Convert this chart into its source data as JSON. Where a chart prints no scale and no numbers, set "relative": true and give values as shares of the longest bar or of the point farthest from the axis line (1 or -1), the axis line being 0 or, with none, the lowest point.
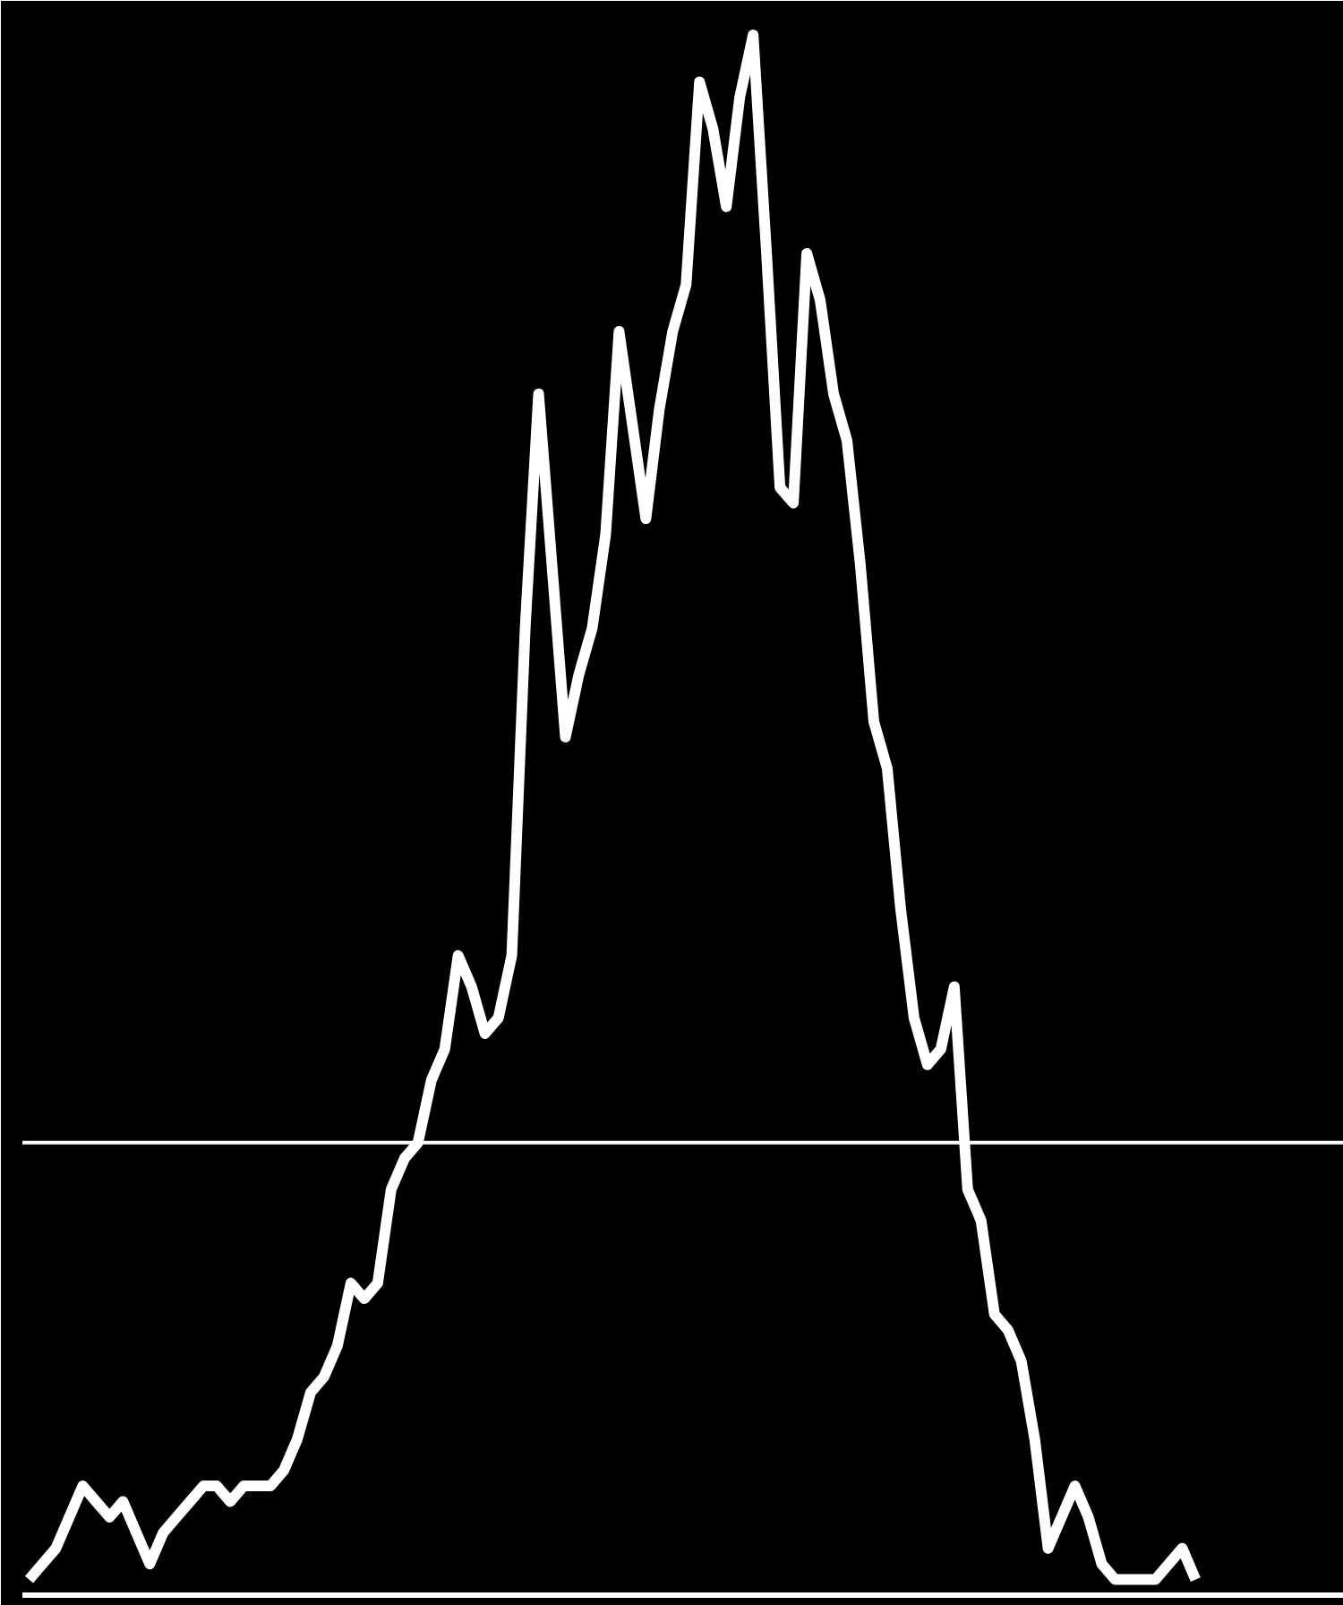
{
  "chart_data": {
    "type": "line",
    "relative": true,
    "grid": false,
    "categories": [
      null,
      null,
      null,
      null,
      null,
      null,
      null,
      null,
      null,
      null,
      null,
      null,
      null,
      null,
      null,
      null,
      null,
      null,
      null,
      null,
      null,
      null,
      null,
      null,
      null,
      null,
      null,
      null,
      null,
      null,
      null,
      null,
      null,
      null,
      null,
      null,
      null,
      null,
      null,
      null,
      null,
      null,
      null,
      null,
      null,
      null,
      null,
      null,
      null,
      null,
      null,
      null,
      null,
      null,
      null,
      null,
      null,
      null,
      null,
      null,
      null,
      null,
      null,
      null,
      null,
      null,
      null,
      null,
      null,
      null,
      null,
      null,
      null,
      null,
      null,
      null,
      null,
      null,
      null,
      null,
      null,
      null,
      null,
      null,
      null,
      null,
      null,
      null
    ],
    "series": [
      {
        "color": "#ffffff",
        "values": [
          0.01,
          0.02,
          0.03,
          0.05,
          0.07,
          0.06,
          0.05,
          0.06,
          0.04,
          0.02,
          0.04,
          0.05,
          0.06,
          0.07,
          0.07,
          0.06,
          0.07,
          0.07,
          0.07,
          0.08,
          0.1,
          0.13,
          0.14,
          0.16,
          0.2,
          0.19,
          0.2,
          0.26,
          0.28,
          0.29,
          0.33,
          0.35,
          0.41,
          0.39,
          0.36,
          0.37,
          0.41,
          0.62,
          0.77,
          0.66,
          0.55,
          0.59,
          0.62,
          0.68,
          0.81,
          0.75,
          0.69,
          0.76,
          0.81,
          0.84,
          0.97,
          0.94,
          0.89,
          0.96,
          1,
          0.86,
          0.71,
          0.7,
          0.86,
          0.83,
          0.77,
          0.74,
          0.66,
          0.56,
          0.53,
          0.44,
          0.37,
          0.34,
          0.35,
          0.39,
          0.26,
          0.24,
          0.18,
          0.17,
          0.15,
          0.1,
          0.03,
          0.05,
          0.07,
          0.05,
          0.02,
          0.01,
          0.01,
          0.01,
          0.01,
          0.02,
          0.03,
          0.01
        ]
      }
    ],
    "ref_lines": [
      {
        "axis": "y",
        "value": 0.29,
        "color": "#ffffff"
      }
    ]
  }
}
